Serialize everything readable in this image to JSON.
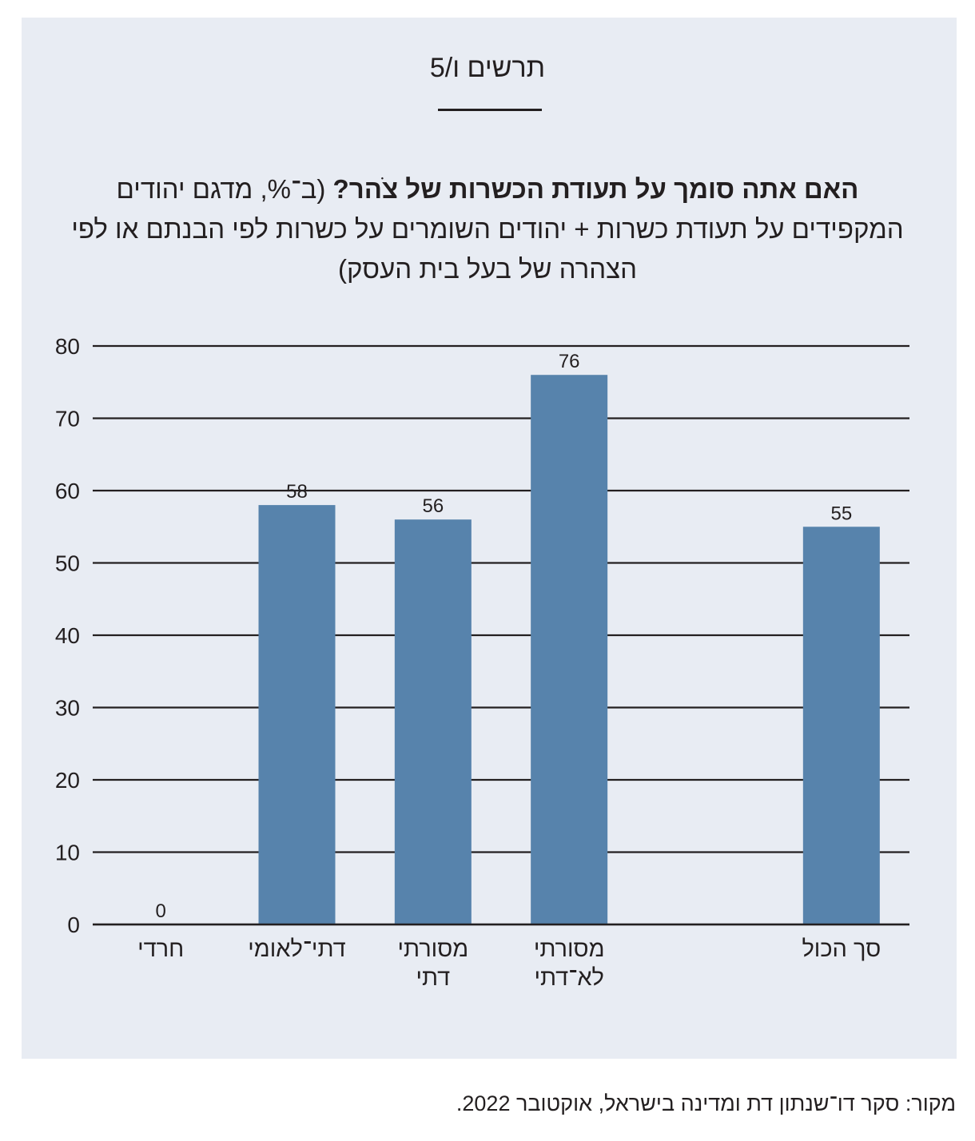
{
  "figure": {
    "label": "תרשים ו/5"
  },
  "question": {
    "bold": "האם אתה סומך על תעודת הכשרות של צֹהר?",
    "rest": "(ב־%, מדגם יהודים המקפידים על תעודת כשרות + יהודים השומרים על כשרות לפי הבנתם או לפי הצהרה של בעל בית העסק)"
  },
  "chart_data": {
    "type": "bar",
    "categories": [
      [
        "חרדי"
      ],
      [
        "דתי־לאומי"
      ],
      [
        "מסורתי",
        "דתי"
      ],
      [
        "מסורתי",
        "לא־דתי"
      ],
      [
        ""
      ],
      [
        "סך הכול"
      ]
    ],
    "values": [
      0,
      58,
      56,
      76,
      null,
      55
    ],
    "value_labels": [
      "0",
      "58",
      "56",
      "76",
      "",
      "55"
    ],
    "ylim": [
      0,
      80
    ],
    "yticks": [
      0,
      10,
      20,
      30,
      40,
      50,
      60,
      70,
      80
    ],
    "grid": true,
    "bar_color": "#5783ac",
    "axis_direction": "rtl"
  },
  "source": "מקור: סקר דו־שנתון דת ומדינה בישראל, אוקטובר 2022."
}
